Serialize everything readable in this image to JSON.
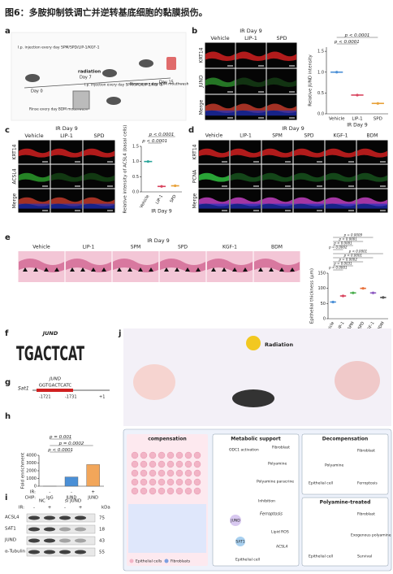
{
  "title": "图6：多胺抑制铁调亡并逆转基底细胞的黏膜损伤。",
  "panels": {
    "a": {
      "letter": "a",
      "top_note": "I.p. injection every day SPM/SPD/LIP-1/KGF-1",
      "radiation": "radiation",
      "day7": "Day 7",
      "mid_note": "I.p. injection every day SPM/SPD/LIP-1/KGF-1",
      "right_note": "Rinse every day BDM mouthwash",
      "day15": "Day 15",
      "day0": "Day 0",
      "left_note": "Rinse every day BDM mouthwash"
    },
    "b": {
      "letter": "b",
      "condition": "IR Day 9",
      "columns": [
        "Vehicle",
        "LIP-1",
        "SPD"
      ],
      "rows": [
        "KRT14",
        "JUND",
        "Merge"
      ],
      "chart": {
        "type": "dot",
        "ylabel": "Relative JUND intensity",
        "xlabel": "IR Day 9",
        "categories": [
          "Vehicle",
          "LIP-1",
          "SPD"
        ],
        "values": [
          1.0,
          0.45,
          0.25
        ],
        "colors": [
          "#4a8fd6",
          "#d9455f",
          "#e8a23a"
        ],
        "ylim": [
          0,
          1.6
        ],
        "yticks": [
          {
            "value": 0,
            "label": "0.0"
          },
          0.5,
          {
            "value": 1,
            "label": "1.0"
          },
          1.5
        ],
        "pvalues": [
          "p < 0.0001",
          "p < 0.0001"
        ]
      }
    },
    "c": {
      "letter": "c",
      "condition": "IR Day 9",
      "columns": [
        "Vehicle",
        "LIP-1",
        "SPD"
      ],
      "rows": [
        "KRT14",
        "ACSL4",
        "Merge"
      ],
      "chart": {
        "type": "dot",
        "ylabel": "Relative intensity of ACSL4 (basal cells)",
        "xlabel": "IR Day 9",
        "categories": [
          "Vehicle",
          "LIP-1",
          "SPD"
        ],
        "values": [
          1.0,
          0.18,
          0.2
        ],
        "colors": [
          "#2aa59a",
          "#d9455f",
          "#e8a23a"
        ],
        "ylim": [
          0,
          1.5
        ],
        "yticks": [
          {
            "value": 0,
            "label": "0.0"
          },
          0.5,
          {
            "value": 1,
            "label": "1.0"
          },
          1.5
        ],
        "pvalues": [
          "p < 0.0001",
          "p < 0.0001"
        ]
      }
    },
    "d": {
      "letter": "d",
      "condition": "IR Day 9",
      "columns": [
        "Vehicle",
        "LIP-1",
        "SPM",
        "SPD",
        "KGF-1",
        "BDM"
      ],
      "rows": [
        "KRT14",
        "PCNA",
        "Merge"
      ]
    },
    "e": {
      "letter": "e",
      "condition": "IR Day 9",
      "columns": [
        "Vehicle",
        "LIP-1",
        "SPM",
        "SPD",
        "KGF-1",
        "BDM"
      ],
      "chart": {
        "type": "dot",
        "ylabel": "Epithelial thickness (μm)",
        "xlabel": "IR Day 9",
        "categories": [
          "Vehicle",
          "LIP-1",
          "SPM",
          "SPD",
          "KGF-1",
          "BDM"
        ],
        "values": [
          55,
          75,
          85,
          100,
          85,
          70
        ],
        "colors": [
          "#4a8fd6",
          "#d9455f",
          "#4caf50",
          "#e8703a",
          "#8e5bc2",
          "#555555"
        ],
        "ylim": [
          0,
          150
        ],
        "yticks": [
          0,
          50,
          100,
          150
        ],
        "pvalues": [
          "p < 0.0001",
          "p = 0.0031",
          "p = 0.0002",
          "p < 0.0001",
          "p < 0.0001",
          "p = 0.0002",
          "p < 0.0001",
          "p < 0.0001",
          "p = 0.0009"
        ]
      }
    },
    "f": {
      "letter": "f",
      "name": "JUND",
      "motif": "TGACTCAT"
    },
    "g": {
      "letter": "g",
      "factor": "JUND",
      "gene": "Sat1",
      "sequence": "GGTGACTCATC",
      "start": "-1721",
      "end": "-1731",
      "tss": "+1"
    },
    "h": {
      "letter": "h",
      "chart": {
        "type": "bar",
        "ylabel": "Fold enrichment",
        "categories": [
          "IgG",
          "JUND",
          "JUND"
        ],
        "ir": [
          "-",
          "-",
          "+"
        ],
        "ir_label": "IR:",
        "chip_label": "CHIP:",
        "values": [
          5,
          1200,
          2800
        ],
        "colors": [
          "#e0e0e0",
          "#4a8fd6",
          "#f2a65a"
        ],
        "ylim": [
          0,
          4000
        ],
        "yticks": [
          0,
          1000,
          2000,
          3000,
          4000
        ],
        "pvalues": [
          "p < 0.0001",
          "p = 0.0002",
          "p = 0.001"
        ]
      }
    },
    "i": {
      "letter": "i",
      "groups": [
        "NC",
        "si JUND"
      ],
      "ir_label": "IR:",
      "ir": [
        "-",
        "+",
        "-",
        "+"
      ],
      "unit": "kDa",
      "rows": [
        {
          "name": "ACSL4",
          "kda": "75"
        },
        {
          "name": "SAT1",
          "kda": "18"
        },
        {
          "name": "JUND",
          "kda": "43"
        },
        {
          "name": "α-Tubulin",
          "kda": "55"
        }
      ]
    },
    "j": {
      "letter": "j",
      "radiation": "Radiation",
      "compensation": "compensation",
      "metabolic": "Metabolic support",
      "odc1": "ODC1 activation",
      "fibroblast1": "Fibroblast",
      "polyamine1": "Polyamine",
      "paracrine": "Polyamine paracrine",
      "inhibition": "Inhibition",
      "ferroptosis1": "Ferroptosis",
      "jund": "JUND",
      "sat1": "SAT1",
      "ros": "Lipid ROS",
      "acsl4": "ACSL4",
      "epi1": "Epithelial cell",
      "decompensation": "Decompensation",
      "fibroblast2": "Fibroblast",
      "polyamine2": "Polyamine",
      "epi2": "Epithelial cell",
      "ferroptosis2": "Ferroptosis",
      "treated": "Polyamine-treated",
      "fibroblast3": "Fibroblast",
      "exogenous": "Exogenous polyamine",
      "epi3": "Epithelial cell",
      "survival": "Survival",
      "legend_epi": "Epithelial cells",
      "legend_fib": "Fibroblasts"
    }
  }
}
